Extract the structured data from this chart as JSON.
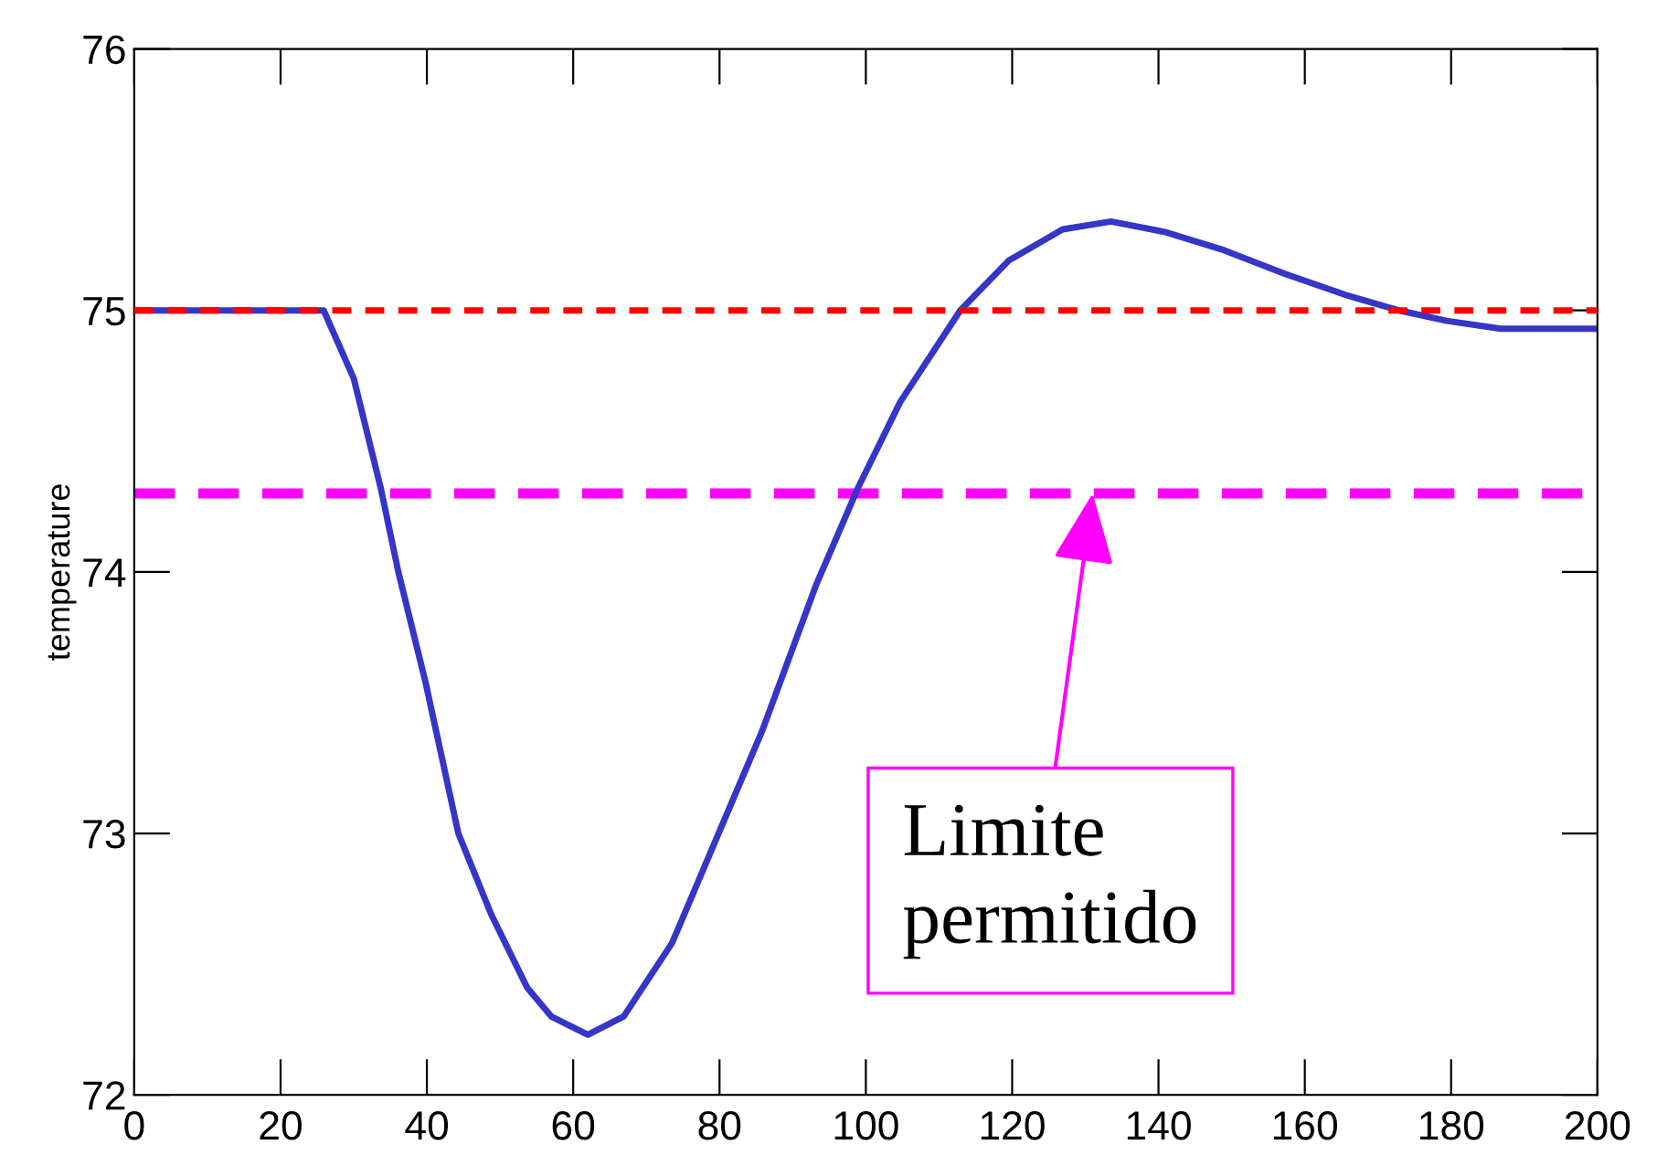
{
  "chart_data": {
    "type": "line",
    "ylabel": "temperature",
    "x": [
      0,
      25.9,
      30,
      33.7,
      36.1,
      39.8,
      44.3,
      48.8,
      53.7,
      57,
      62,
      66.9,
      73.5,
      85.8,
      93.2,
      98.9,
      104.7,
      112.9,
      119.5,
      126.9,
      133.5,
      140.9,
      149,
      157.3,
      165.5,
      172.9,
      179.4,
      186.8,
      200
    ],
    "series": [
      {
        "color": "#3535c8",
        "values": [
          75.0,
          75.0,
          74.74,
          74.32,
          74.0,
          73.58,
          73.0,
          72.69,
          72.41,
          72.3,
          72.23,
          72.3,
          72.58,
          73.39,
          73.95,
          74.32,
          74.65,
          75.0,
          75.19,
          75.31,
          75.34,
          75.3,
          75.23,
          75.14,
          75.06,
          75.0,
          74.96,
          74.93,
          74.93
        ]
      }
    ],
    "xlim": [
      0,
      200
    ],
    "ylim": [
      72,
      76
    ],
    "xticks": [
      0,
      20,
      40,
      60,
      80,
      100,
      120,
      140,
      160,
      180,
      200
    ],
    "yticks": [
      72,
      73,
      74,
      75,
      76
    ],
    "grid": false,
    "legend": false,
    "marker": "none",
    "line_style": "solid",
    "ref_lines": [
      {
        "axis": "y",
        "value": 75.0,
        "label": null,
        "color": "#ff0000",
        "line_style": "dashed"
      },
      {
        "axis": "y",
        "value": 74.3,
        "label": null,
        "color": "#ff00ff",
        "line_style": "dashed"
      }
    ],
    "annotations": [
      {
        "text": "Limite\npermitido",
        "x": 131,
        "y": 74.3
      }
    ]
  }
}
